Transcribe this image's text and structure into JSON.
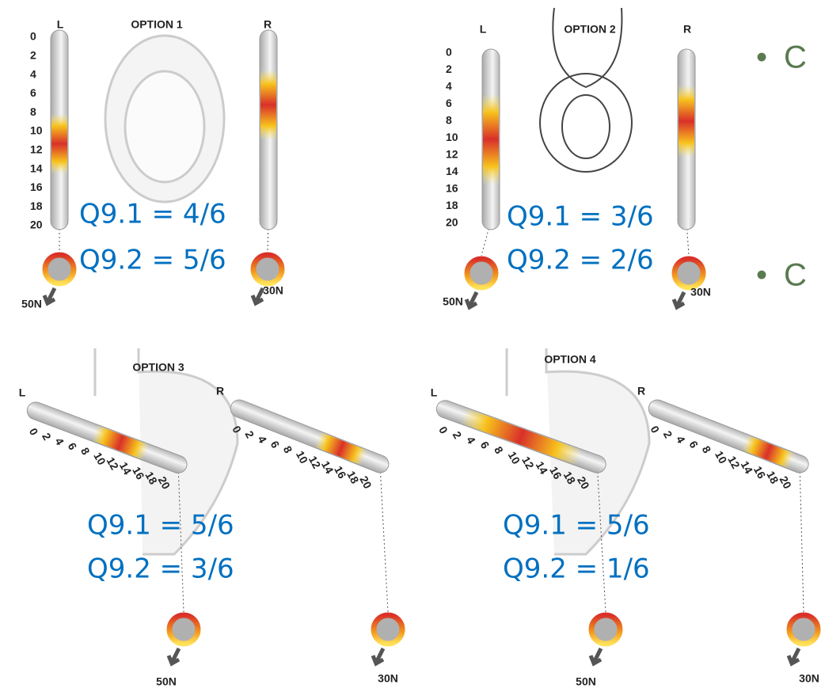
{
  "scale": [
    "0",
    "2",
    "4",
    "6",
    "8",
    "10",
    "12",
    "14",
    "16",
    "18",
    "20"
  ],
  "options": [
    {
      "title": "OPTION 1",
      "left_label": "L",
      "right_label": "R",
      "q1": "Q9.1 = 4/6",
      "q2": "Q9.2 = 5/6",
      "left_force": "50N",
      "right_force": "30N"
    },
    {
      "title": "OPTION 2",
      "left_label": "L",
      "right_label": "R",
      "q1": "Q9.1 = 3/6",
      "q2": "Q9.2 = 2/6",
      "left_force": "50N",
      "right_force": "30N"
    },
    {
      "title": "OPTION 3",
      "left_label": "L",
      "right_label": "R",
      "q1": "Q9.1 = 5/6",
      "q2": "Q9.2 = 3/6",
      "left_force": "50N",
      "right_force": "30N"
    },
    {
      "title": "OPTION 4",
      "left_label": "L",
      "right_label": "R",
      "q1": "Q9.1 = 5/6",
      "q2": "Q9.2 = 1/6",
      "left_force": "50N",
      "right_force": "30N"
    }
  ],
  "bullets": [
    "C",
    "C"
  ]
}
